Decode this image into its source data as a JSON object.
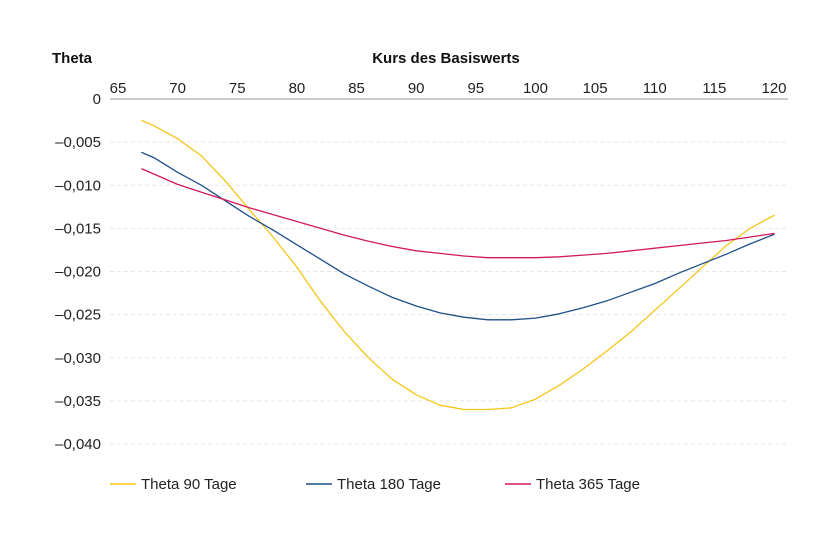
{
  "chart_data": {
    "type": "line",
    "title": "",
    "ylabel": "Theta",
    "xlabel": "Kurs des Basiswerts",
    "xlim": [
      65,
      120
    ],
    "ylim": [
      -0.04,
      0
    ],
    "x_ticks": [
      "65",
      "70",
      "75",
      "80",
      "85",
      "90",
      "95",
      "100",
      "105",
      "110",
      "115",
      "120"
    ],
    "y_ticks": [
      "0",
      "–0,005",
      "–0,010",
      "–0,015",
      "–0,020",
      "–0,025",
      "–0,030",
      "–0,035",
      "–0,040"
    ],
    "grid": true,
    "x_axis_position": "top",
    "legend_position": "bottom",
    "x": [
      67,
      68,
      70,
      72,
      74,
      76,
      78,
      80,
      82,
      84,
      86,
      88,
      90,
      92,
      94,
      96,
      98,
      100,
      102,
      104,
      106,
      108,
      110,
      112,
      114,
      116,
      118,
      120
    ],
    "series": [
      {
        "name": "Theta 90 Tage",
        "color": "#F5C518",
        "values": [
          -0.0025,
          -0.0031,
          -0.0046,
          -0.0066,
          -0.0095,
          -0.0128,
          -0.016,
          -0.0195,
          -0.0235,
          -0.027,
          -0.03,
          -0.0325,
          -0.0343,
          -0.0355,
          -0.036,
          -0.036,
          -0.0358,
          -0.0348,
          -0.0332,
          -0.0313,
          -0.0292,
          -0.027,
          -0.0245,
          -0.022,
          -0.0195,
          -0.017,
          -0.015,
          -0.0135
        ]
      },
      {
        "name": "Theta 180 Tage",
        "color": "#1F4E89",
        "values": [
          -0.0062,
          -0.0068,
          -0.0085,
          -0.01,
          -0.0118,
          -0.0136,
          -0.0152,
          -0.0169,
          -0.0186,
          -0.0203,
          -0.0217,
          -0.023,
          -0.024,
          -0.0248,
          -0.0253,
          -0.0256,
          -0.0256,
          -0.0254,
          -0.0249,
          -0.0242,
          -0.0234,
          -0.0224,
          -0.0214,
          -0.0202,
          -0.0191,
          -0.018,
          -0.0168,
          -0.0157
        ]
      },
      {
        "name": "Theta 365 Tage",
        "color": "#D2185A",
        "values": [
          -0.0081,
          -0.0087,
          -0.0099,
          -0.0108,
          -0.0117,
          -0.0126,
          -0.0134,
          -0.0142,
          -0.015,
          -0.0158,
          -0.0165,
          -0.0171,
          -0.0176,
          -0.0179,
          -0.0182,
          -0.0184,
          -0.0184,
          -0.0184,
          -0.0183,
          -0.0181,
          -0.0179,
          -0.0176,
          -0.0173,
          -0.017,
          -0.0167,
          -0.0164,
          -0.016,
          -0.0156
        ]
      }
    ]
  }
}
